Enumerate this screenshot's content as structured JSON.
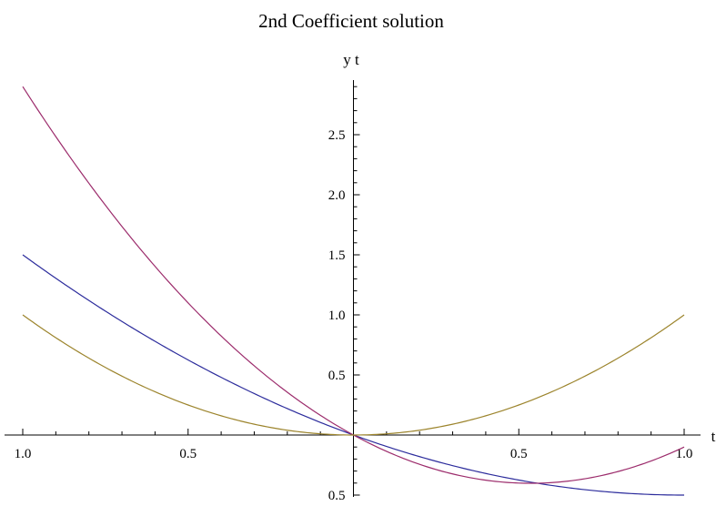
{
  "chart_data": {
    "type": "line",
    "title": "2nd Coefficient solution",
    "xlabel": "t",
    "ylabel": "y t",
    "xlim": [
      -1.0,
      1.0
    ],
    "ylim": [
      -0.5,
      3.0
    ],
    "x_ticks": [
      {
        "value": -1.0,
        "label": "1.0"
      },
      {
        "value": -0.5,
        "label": "0.5"
      },
      {
        "value": 0.5,
        "label": "0.5"
      },
      {
        "value": 1.0,
        "label": "1.0"
      }
    ],
    "y_ticks": [
      {
        "value": -0.5,
        "label": "0.5"
      },
      {
        "value": 0.5,
        "label": "0.5"
      },
      {
        "value": 1.0,
        "label": "1.0"
      },
      {
        "value": 1.5,
        "label": "1.5"
      },
      {
        "value": 2.0,
        "label": "2.0"
      },
      {
        "value": 2.5,
        "label": "2.5"
      }
    ],
    "x_minor_step": 0.1,
    "y_minor_step": 0.1,
    "grid": false,
    "series": [
      {
        "color": "#2c2c9c",
        "x": [
          -1.0,
          -0.9,
          -0.8,
          -0.7,
          -0.6,
          -0.5,
          -0.4,
          -0.3,
          -0.2,
          -0.1,
          0.0,
          0.1,
          0.2,
          0.3,
          0.4,
          0.5,
          0.6,
          0.7,
          0.8,
          0.9,
          1.0
        ],
        "y": [
          1.5,
          1.305,
          1.12,
          0.945,
          0.78,
          0.625,
          0.48,
          0.345,
          0.22,
          0.105,
          0.0,
          -0.095,
          -0.18,
          -0.255,
          -0.32,
          -0.375,
          -0.42,
          -0.455,
          -0.48,
          -0.495,
          -0.5
        ]
      },
      {
        "color": "#9c2c6c",
        "x": [
          -1.0,
          -0.9,
          -0.8,
          -0.7,
          -0.6,
          -0.5,
          -0.4,
          -0.3,
          -0.2,
          -0.1,
          0.0,
          0.1,
          0.2,
          0.3,
          0.4,
          0.5,
          0.6,
          0.7,
          0.8,
          0.9,
          1.0
        ],
        "y": [
          2.9,
          2.484,
          2.096,
          1.736,
          1.404,
          1.1,
          0.824,
          0.576,
          0.356,
          0.164,
          0.0,
          -0.136,
          -0.244,
          -0.324,
          -0.376,
          -0.4,
          -0.396,
          -0.364,
          -0.304,
          -0.216,
          -0.1
        ]
      },
      {
        "color": "#9c842c",
        "x": [
          -1.0,
          -0.9,
          -0.8,
          -0.7,
          -0.6,
          -0.5,
          -0.4,
          -0.3,
          -0.2,
          -0.1,
          0.0,
          0.1,
          0.2,
          0.3,
          0.4,
          0.5,
          0.6,
          0.7,
          0.8,
          0.9,
          1.0
        ],
        "y": [
          1.0,
          0.81,
          0.64,
          0.49,
          0.36,
          0.25,
          0.16,
          0.09,
          0.04,
          0.01,
          0.0,
          0.01,
          0.04,
          0.09,
          0.16,
          0.25,
          0.36,
          0.49,
          0.64,
          0.81,
          1.0
        ]
      }
    ]
  }
}
